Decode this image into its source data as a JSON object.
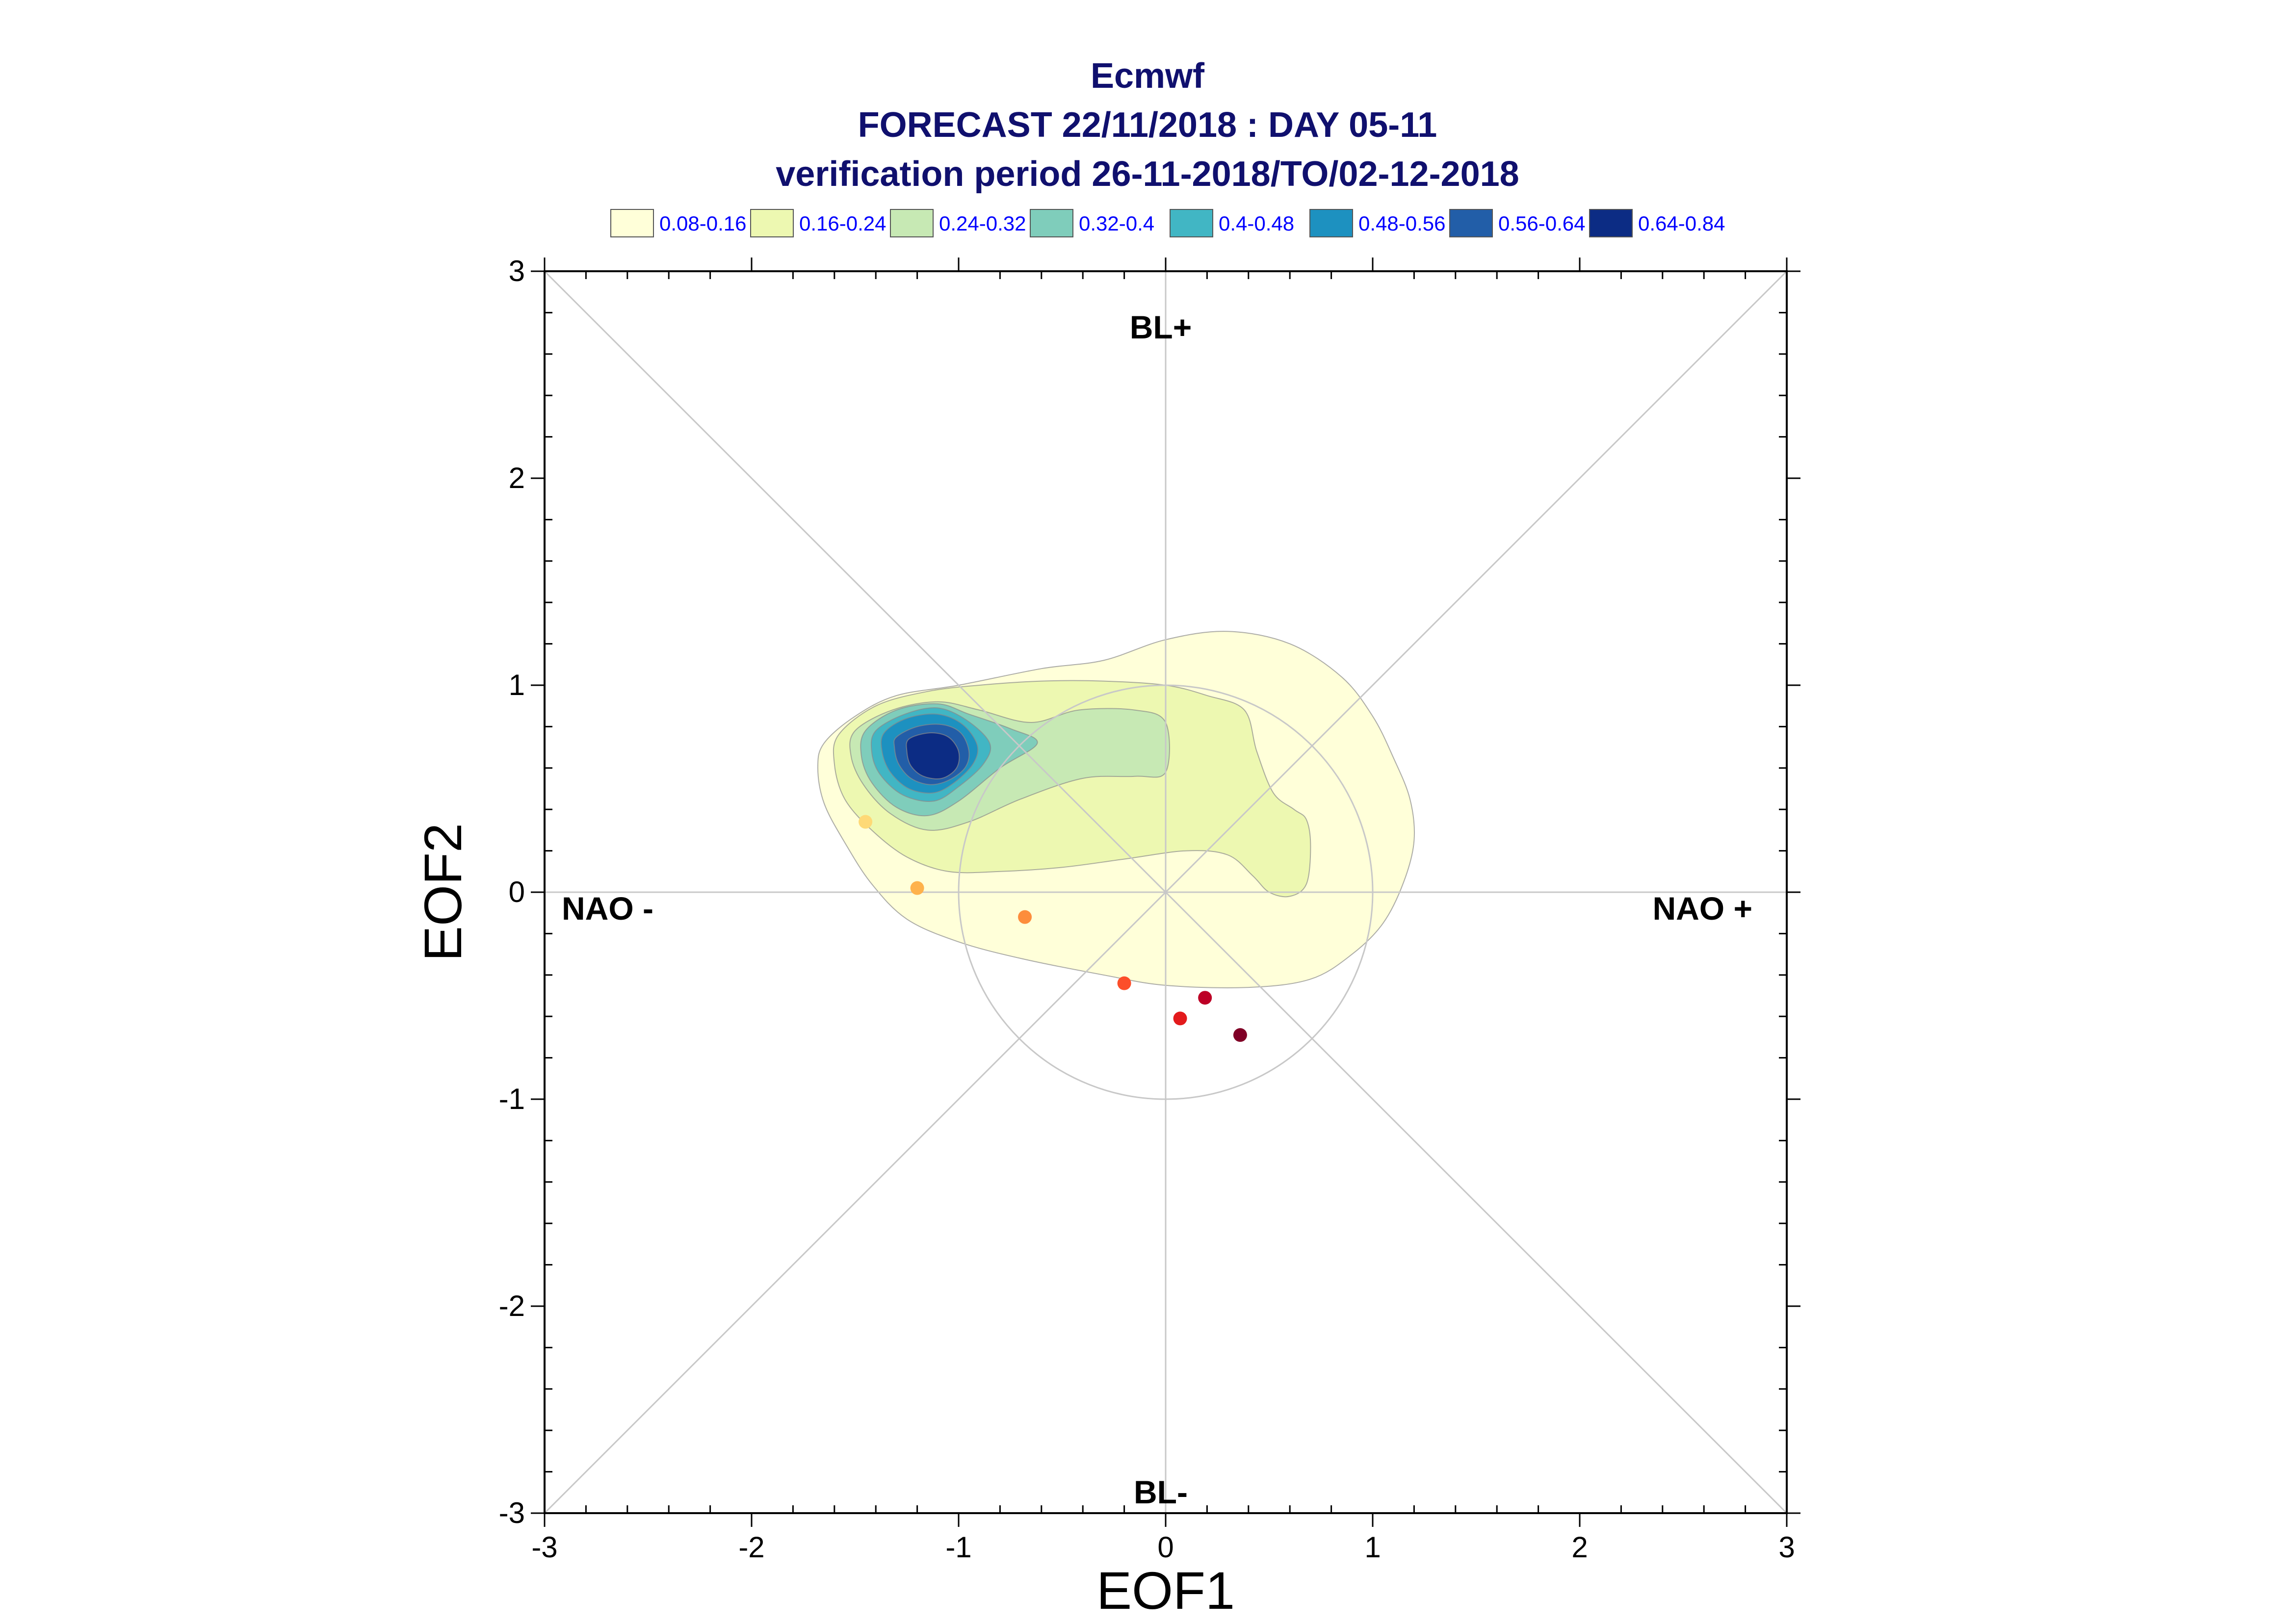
{
  "title": {
    "line1": "Ecmwf",
    "line2": "FORECAST 22/11/2018 : DAY 05-11",
    "line3": "verification period 26-11-2018/TO/02-12-2018"
  },
  "chart_data": {
    "type": "scatter",
    "xlabel": "EOF1",
    "ylabel": "EOF2",
    "xlim": [
      -3,
      3
    ],
    "ylim": [
      -3,
      3
    ],
    "x_ticks": [
      "-3",
      "-2",
      "-1",
      "0",
      "1",
      "2",
      "3"
    ],
    "y_ticks": [
      "-3",
      "-2",
      "-1",
      "0",
      "1",
      "2",
      "3"
    ],
    "grid": false,
    "legend_placement": "top",
    "legend": [
      {
        "label": "0.08-0.16",
        "color": "#ffffd9"
      },
      {
        "label": "0.16-0.24",
        "color": "#edf8b1"
      },
      {
        "label": "0.24-0.32",
        "color": "#c7e9b4"
      },
      {
        "label": "0.32-0.4",
        "color": "#7fcdbb"
      },
      {
        "label": "0.4-0.48",
        "color": "#41b6c4"
      },
      {
        "label": "0.48-0.56",
        "color": "#1d91c0"
      },
      {
        "label": "0.56-0.64",
        "color": "#225ea8"
      },
      {
        "label": "0.64-0.84",
        "color": "#0c2c84"
      }
    ],
    "region_labels": {
      "top": "BL+",
      "bottom": "BL-",
      "left": "NAO -",
      "right": "NAO +"
    },
    "reference_circle": {
      "center": [
        0,
        0
      ],
      "radius": 1
    },
    "points": [
      {
        "x": -1.45,
        "y": 0.34,
        "color": "#fed976"
      },
      {
        "x": -1.2,
        "y": 0.02,
        "color": "#feb24c"
      },
      {
        "x": -0.68,
        "y": -0.12,
        "color": "#fd8d3c"
      },
      {
        "x": -0.2,
        "y": -0.44,
        "color": "#fc4e2a"
      },
      {
        "x": 0.07,
        "y": -0.61,
        "color": "#e31a1c"
      },
      {
        "x": 0.19,
        "y": -0.51,
        "color": "#bd0026"
      },
      {
        "x": 0.36,
        "y": -0.69,
        "color": "#800026"
      }
    ],
    "density_contours": [
      {
        "level": "0.08-0.16",
        "color": "#ffffd9",
        "x": [
          -1.65,
          -1.5,
          -1.3,
          -1.0,
          -0.6,
          -0.3,
          0.0,
          0.3,
          0.6,
          0.85,
          1.0,
          1.1,
          1.18,
          1.2,
          1.15,
          1.05,
          0.9,
          0.7,
          0.4,
          0.0,
          -0.3,
          -0.7,
          -1.0,
          -1.25,
          -1.42,
          -1.55,
          -1.65,
          -1.68
        ],
        "y": [
          0.72,
          0.85,
          0.95,
          1.0,
          1.08,
          1.12,
          1.22,
          1.26,
          1.2,
          1.04,
          0.85,
          0.65,
          0.45,
          0.25,
          0.05,
          -0.15,
          -0.3,
          -0.42,
          -0.46,
          -0.45,
          -0.4,
          -0.32,
          -0.24,
          -0.13,
          0.04,
          0.24,
          0.43,
          0.6
        ]
      },
      {
        "level": "0.16-0.24",
        "color": "#edf8b1",
        "x": [
          -1.58,
          -1.4,
          -1.15,
          -0.9,
          -0.6,
          -0.3,
          0.0,
          0.2,
          0.38,
          0.44,
          0.52,
          0.62,
          0.68,
          0.7,
          0.68,
          0.6,
          0.5,
          0.42,
          0.3,
          0.1,
          -0.2,
          -0.5,
          -0.8,
          -1.05,
          -1.25,
          -1.42,
          -1.55,
          -1.6
        ],
        "y": [
          0.76,
          0.9,
          0.97,
          1.0,
          1.02,
          1.02,
          1.0,
          0.95,
          0.88,
          0.68,
          0.48,
          0.4,
          0.35,
          0.22,
          0.04,
          -0.02,
          0.0,
          0.08,
          0.18,
          0.2,
          0.16,
          0.12,
          0.1,
          0.1,
          0.17,
          0.3,
          0.45,
          0.62
        ]
      },
      {
        "level": "0.24-0.32",
        "color": "#c7e9b4",
        "x": [
          -1.5,
          -1.32,
          -1.1,
          -0.9,
          -0.65,
          -0.42,
          -0.15,
          0.0,
          0.0,
          -0.15,
          -0.4,
          -0.7,
          -0.95,
          -1.15,
          -1.33,
          -1.46,
          -1.52
        ],
        "y": [
          0.78,
          0.88,
          0.92,
          0.88,
          0.82,
          0.88,
          0.88,
          0.82,
          0.58,
          0.56,
          0.55,
          0.45,
          0.34,
          0.3,
          0.38,
          0.52,
          0.66
        ]
      },
      {
        "level": "0.32-0.4",
        "color": "#7fcdbb",
        "x": [
          -1.45,
          -1.3,
          -1.1,
          -0.95,
          -0.75,
          -0.62,
          -0.8,
          -1.0,
          -1.15,
          -1.3,
          -1.42,
          -1.47
        ],
        "y": [
          0.78,
          0.88,
          0.91,
          0.86,
          0.79,
          0.72,
          0.6,
          0.44,
          0.37,
          0.41,
          0.53,
          0.66
        ]
      },
      {
        "level": "0.4-0.48",
        "color": "#41b6c4",
        "x": [
          -1.4,
          -1.26,
          -1.1,
          -0.96,
          -0.85,
          -0.88,
          -1.0,
          -1.12,
          -1.27,
          -1.38,
          -1.42
        ],
        "y": [
          0.78,
          0.86,
          0.89,
          0.83,
          0.72,
          0.62,
          0.51,
          0.44,
          0.47,
          0.57,
          0.68
        ]
      },
      {
        "level": "0.48-0.56",
        "color": "#1d91c0",
        "x": [
          -1.36,
          -1.25,
          -1.1,
          -0.98,
          -0.91,
          -0.93,
          -1.02,
          -1.12,
          -1.24,
          -1.33,
          -1.37
        ],
        "y": [
          0.77,
          0.84,
          0.86,
          0.81,
          0.71,
          0.62,
          0.53,
          0.48,
          0.5,
          0.58,
          0.68
        ]
      },
      {
        "level": "0.56-0.64",
        "color": "#225ea8",
        "x": [
          -1.3,
          -1.2,
          -1.08,
          -0.99,
          -0.95,
          -0.97,
          -1.05,
          -1.14,
          -1.23,
          -1.29,
          -1.31
        ],
        "y": [
          0.75,
          0.8,
          0.81,
          0.77,
          0.68,
          0.6,
          0.54,
          0.52,
          0.55,
          0.62,
          0.7
        ]
      },
      {
        "level": "0.64-0.84",
        "color": "#0c2c84",
        "x": [
          -1.24,
          -1.14,
          -1.05,
          -1.0,
          -1.01,
          -1.08,
          -1.17,
          -1.23,
          -1.25
        ],
        "y": [
          0.74,
          0.77,
          0.75,
          0.68,
          0.6,
          0.55,
          0.56,
          0.61,
          0.68
        ]
      }
    ]
  }
}
